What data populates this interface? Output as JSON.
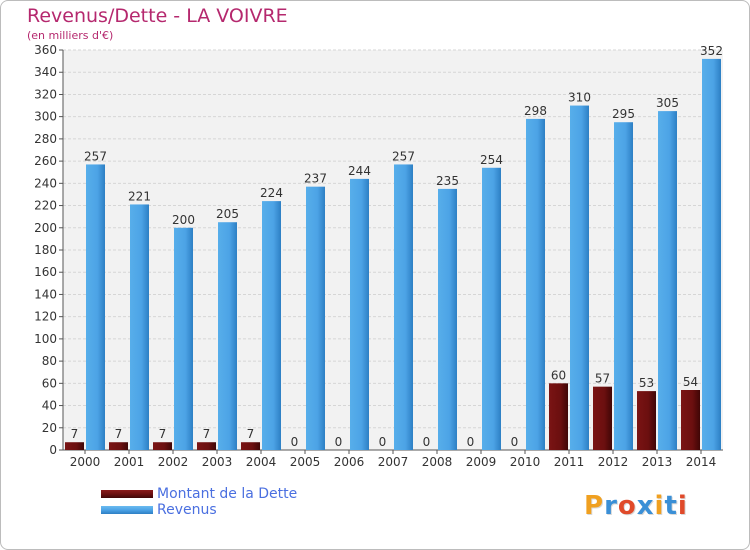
{
  "chart_data": {
    "type": "bar",
    "title": "Revenus/Dette - LA VOIVRE",
    "subtitle": "(en milliers d'€)",
    "categories": [
      "2000",
      "2001",
      "2002",
      "2003",
      "2004",
      "2005",
      "2006",
      "2007",
      "2008",
      "2009",
      "2010",
      "2011",
      "2012",
      "2013",
      "2014"
    ],
    "series": [
      {
        "name": "Montant de la Dette",
        "values": [
          7,
          7,
          7,
          7,
          7,
          0,
          0,
          0,
          0,
          0,
          0,
          60,
          57,
          53,
          54
        ],
        "color": "#6b0f0f"
      },
      {
        "name": "Revenus",
        "values": [
          257,
          221,
          200,
          205,
          224,
          237,
          244,
          257,
          235,
          254,
          298,
          310,
          295,
          305,
          352
        ],
        "color": "#4ca3e6"
      }
    ],
    "ylim": [
      0,
      360
    ],
    "yticks": [
      0,
      20,
      40,
      60,
      80,
      100,
      120,
      140,
      160,
      180,
      200,
      220,
      240,
      260,
      280,
      300,
      320,
      340,
      360
    ],
    "grid": true,
    "legend_position": "bottom-left"
  },
  "logo": {
    "text": "Proxiti",
    "colors": [
      "#f0a020",
      "#3a8fd6",
      "#e04a2a",
      "#3a8fd6",
      "#f0a020",
      "#3a8fd6",
      "#e04a2a"
    ]
  }
}
